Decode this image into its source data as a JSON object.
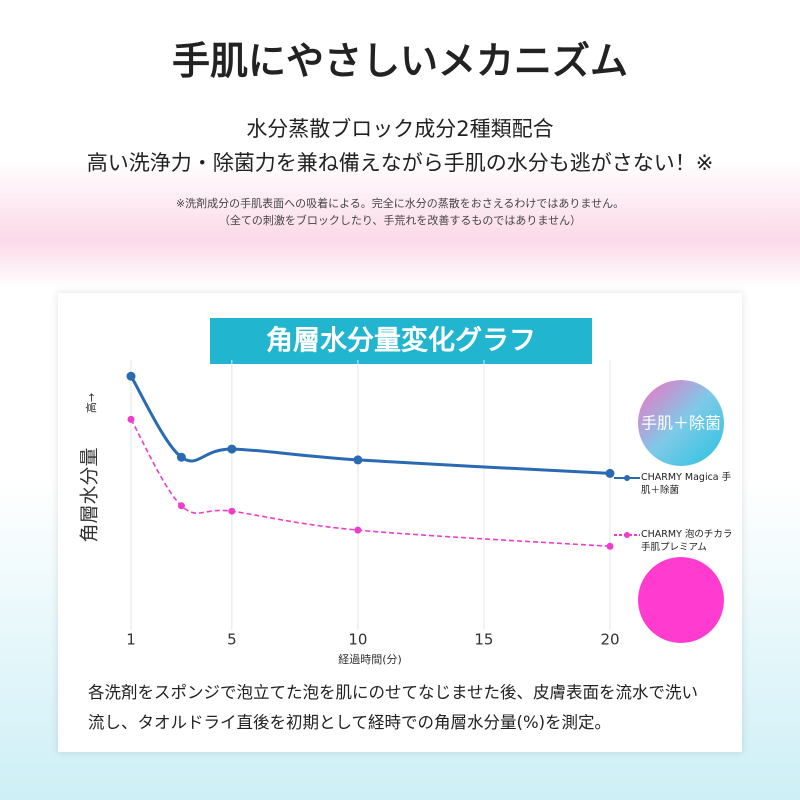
{
  "header": {
    "title": "手肌にやさしいメカニズム",
    "lines": [
      "水分蒸散ブロック成分2種類配合",
      "高い洗浄力・除菌力を兼ね備えながら手肌の水分も逃がさない！※"
    ],
    "notes": [
      "※洗剤成分の手肌表面への吸着による。完全に水分の蒸散をおさえるわけではありません。",
      "（全ての刺激をブロックしたり、手荒れを改善するものではありません）"
    ]
  },
  "chart_data": {
    "type": "line",
    "title": "角層水分量変化グラフ",
    "y_label": "角層水分量",
    "y_note": "高→",
    "x_label": "経過時間(分)",
    "x": [
      1,
      3,
      5,
      10,
      20
    ],
    "xlim": [
      1,
      20
    ],
    "xticks": [
      1,
      5,
      10,
      15,
      20
    ],
    "ylim": [
      0,
      100
    ],
    "grid": true,
    "series": [
      {
        "name": "CHARMY Magica 手肌＋除菌",
        "color": "#2a6ab3",
        "style": "solid",
        "values": [
          94,
          64,
          67,
          63,
          58
        ]
      },
      {
        "name": "CHARMY 泡のチカラ 手肌プレミアム",
        "color": "#f03cc8",
        "style": "dashed",
        "values": [
          78,
          46,
          44,
          37,
          31
        ]
      }
    ],
    "annotations": [
      "手肌＋除菌"
    ]
  },
  "footer": {
    "text": "各洗剤をスポンジで泡立てた泡を肌にのせてなじませた後、皮膚表面を流水で洗い流し、タオルドライ直後を初期として経時での角層水分量(%)を測定。"
  }
}
